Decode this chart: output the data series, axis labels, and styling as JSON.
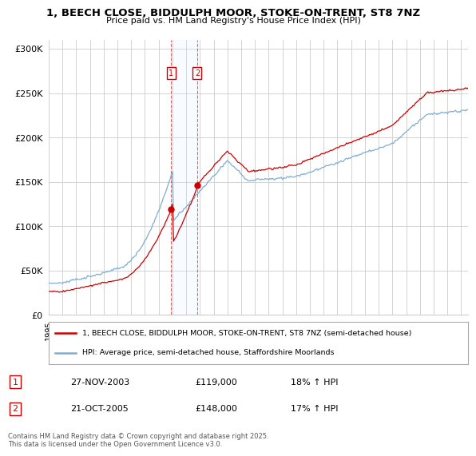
{
  "title": "1, BEECH CLOSE, BIDDULPH MOOR, STOKE-ON-TRENT, ST8 7NZ",
  "subtitle": "Price paid vs. HM Land Registry's House Price Index (HPI)",
  "ylabel_ticks": [
    "£0",
    "£50K",
    "£100K",
    "£150K",
    "£200K",
    "£250K",
    "£300K"
  ],
  "ytick_values": [
    0,
    50000,
    100000,
    150000,
    200000,
    250000,
    300000
  ],
  "ylim": [
    0,
    310000
  ],
  "transaction1": {
    "date": "27-NOV-2003",
    "price": 119000,
    "hpi_pct": "18% ↑ HPI",
    "label": "1"
  },
  "transaction2": {
    "date": "21-OCT-2005",
    "price": 148000,
    "hpi_pct": "17% ↑ HPI",
    "label": "2"
  },
  "transaction1_x": 2003.9,
  "transaction2_x": 2005.8,
  "line1_color": "#cc0000",
  "line2_color": "#7eadd4",
  "line1_label": "1, BEECH CLOSE, BIDDULPH MOOR, STOKE-ON-TRENT, ST8 7NZ (semi-detached house)",
  "line2_label": "HPI: Average price, semi-detached house, Staffordshire Moorlands",
  "footer": "Contains HM Land Registry data © Crown copyright and database right 2025.\nThis data is licensed under the Open Government Licence v3.0.",
  "bg_color": "#ffffff",
  "grid_color": "#cccccc",
  "xlim_start": 1995.0,
  "xlim_end": 2025.5,
  "label_box_color": "#cc0000",
  "shade_color": "#ddeeff"
}
